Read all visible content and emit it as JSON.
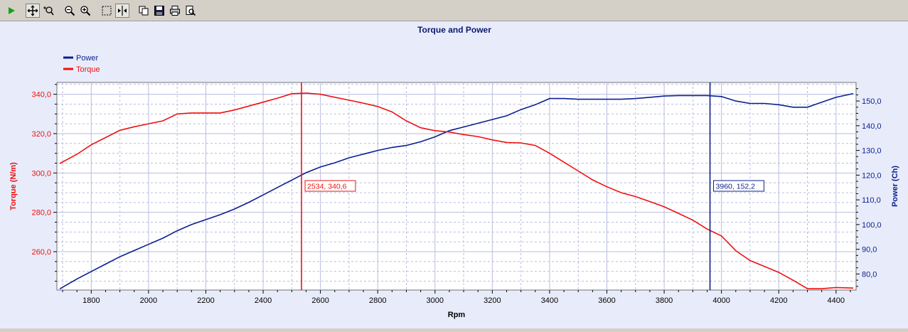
{
  "toolbar": {
    "buttons": [
      {
        "name": "run-icon",
        "active": false
      },
      {
        "name": "pan-icon",
        "active": true
      },
      {
        "name": "zoom-select-icon",
        "active": false
      },
      {
        "name": "zoom-out-icon",
        "active": false
      },
      {
        "name": "zoom-in-icon",
        "active": false
      },
      {
        "name": "rectangle-select-icon",
        "active": false
      },
      {
        "name": "cursor-marker-icon",
        "active": true
      },
      {
        "name": "copy-icon",
        "active": false
      },
      {
        "name": "save-icon",
        "active": false
      },
      {
        "name": "print-icon",
        "active": false
      },
      {
        "name": "print-preview-icon",
        "active": false
      }
    ]
  },
  "colors": {
    "torque": "#ee1111",
    "power": "#0a1f8f",
    "title": "#0a1a6e",
    "grid": "#b8bce0",
    "plot_bg": "#ffffff",
    "panel_bg": "#e8ecfa"
  },
  "chart_data": {
    "type": "line",
    "title": "Torque and Power",
    "xlabel": "Rpm",
    "ylabel_left": "Torque (N/m)",
    "ylabel_right": "Power (Ch)",
    "legend_placement": "top-left",
    "grid": true,
    "xlim": [
      1680,
      4470
    ],
    "ylim_left": [
      240.5,
      346
    ],
    "ylim_right": [
      73.5,
      157.5
    ],
    "x_ticks": [
      "1800",
      "2000",
      "2200",
      "2400",
      "2600",
      "2800",
      "3000",
      "3200",
      "3400",
      "3600",
      "3800",
      "4000",
      "4200",
      "4400"
    ],
    "x_tick_values": [
      1800,
      2000,
      2200,
      2400,
      2600,
      2800,
      3000,
      3200,
      3400,
      3600,
      3800,
      4000,
      4200,
      4400
    ],
    "y_left_ticks": [
      "260,0",
      "280,0",
      "300,0",
      "320,0",
      "340,0"
    ],
    "y_left_tick_values": [
      260,
      280,
      300,
      320,
      340
    ],
    "y_right_ticks": [
      "80,0",
      "90,0",
      "100,0",
      "110,0",
      "120,0",
      "130,0",
      "140,0",
      "150,0"
    ],
    "y_right_tick_values": [
      80,
      90,
      100,
      110,
      120,
      130,
      140,
      150
    ],
    "series": [
      {
        "name": "Power",
        "axis": "right",
        "x": [
          1690,
          1750,
          1800,
          1850,
          1900,
          1950,
          2000,
          2050,
          2100,
          2150,
          2200,
          2250,
          2300,
          2350,
          2400,
          2450,
          2500,
          2550,
          2600,
          2650,
          2700,
          2750,
          2800,
          2850,
          2900,
          2950,
          3000,
          3050,
          3100,
          3150,
          3200,
          3250,
          3300,
          3350,
          3400,
          3450,
          3500,
          3550,
          3600,
          3650,
          3700,
          3750,
          3800,
          3850,
          3900,
          3950,
          4000,
          4050,
          4100,
          4150,
          4200,
          4250,
          4300,
          4350,
          4400,
          4460
        ],
        "values": [
          74.0,
          78.0,
          81.0,
          84.0,
          87.0,
          89.5,
          92.0,
          94.5,
          97.5,
          100.0,
          102.0,
          104.0,
          106.3,
          109.0,
          112.0,
          115.0,
          118.0,
          121.0,
          123.3,
          125.0,
          127.0,
          128.5,
          130.0,
          131.2,
          132.0,
          133.5,
          135.5,
          138.0,
          139.5,
          141.0,
          142.5,
          144.0,
          146.5,
          148.5,
          151.0,
          151.0,
          150.7,
          150.7,
          150.7,
          150.7,
          151.0,
          151.5,
          152.0,
          152.2,
          152.2,
          152.2,
          151.8,
          150.0,
          149.0,
          149.0,
          148.5,
          147.5,
          147.5,
          149.5,
          151.5,
          153.0
        ]
      },
      {
        "name": "Torque",
        "axis": "left",
        "x": [
          1690,
          1750,
          1800,
          1850,
          1900,
          1950,
          2000,
          2050,
          2100,
          2150,
          2200,
          2250,
          2300,
          2350,
          2400,
          2450,
          2500,
          2550,
          2600,
          2650,
          2700,
          2750,
          2800,
          2850,
          2900,
          2950,
          3000,
          3050,
          3100,
          3150,
          3200,
          3250,
          3300,
          3350,
          3400,
          3450,
          3500,
          3550,
          3600,
          3650,
          3700,
          3750,
          3800,
          3850,
          3900,
          3950,
          4000,
          4050,
          4100,
          4150,
          4200,
          4250,
          4300,
          4350,
          4400,
          4460
        ],
        "values": [
          304.8,
          309.5,
          314.3,
          318.0,
          321.7,
          323.5,
          325.0,
          326.5,
          330.0,
          330.5,
          330.5,
          330.5,
          332.0,
          334.0,
          336.0,
          338.0,
          340.3,
          340.6,
          340.0,
          338.5,
          337.0,
          335.5,
          333.8,
          331.0,
          326.5,
          323.0,
          321.5,
          320.8,
          319.5,
          318.5,
          316.8,
          315.5,
          315.3,
          314.0,
          310.0,
          305.5,
          301.0,
          296.5,
          293.0,
          290.0,
          288.0,
          285.5,
          282.8,
          279.5,
          276.0,
          271.5,
          268.0,
          260.5,
          255.5,
          252.5,
          249.5,
          245.5,
          241.2,
          241.2,
          241.8,
          241.5
        ]
      }
    ],
    "annotations": [
      {
        "x": 2534,
        "label": "2534, 340,6",
        "series": "Torque"
      },
      {
        "x": 3960,
        "label": "3960, 152,2",
        "series": "Power"
      }
    ]
  }
}
